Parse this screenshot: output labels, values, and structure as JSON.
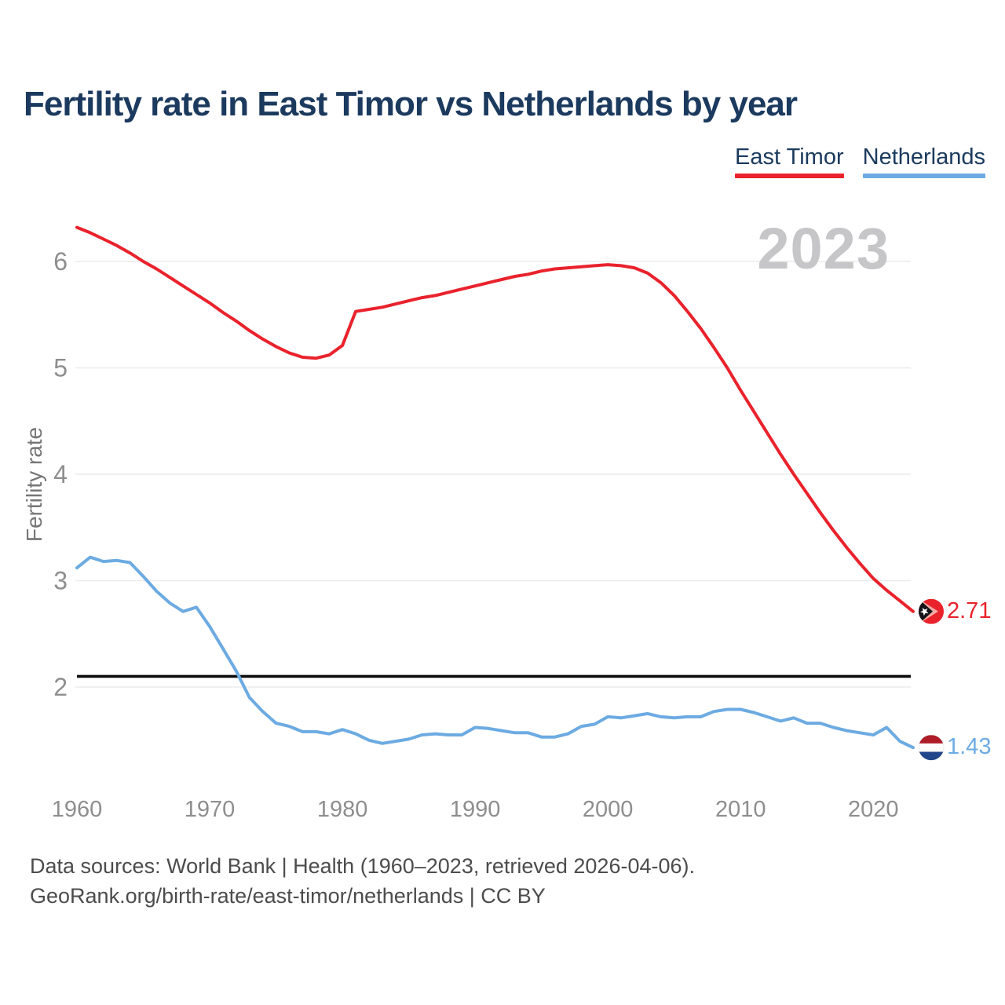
{
  "header": {
    "title": "Fertility rate in East Timor vs Netherlands by year"
  },
  "legend": {
    "east_timor": {
      "label": "East Timor",
      "color": "#e9222c"
    },
    "netherlands": {
      "label": "Netherlands",
      "color": "#6cabe2"
    }
  },
  "watermark": "2023",
  "y_axis": {
    "title": "Fertility rate",
    "ticks": [
      6,
      5,
      4,
      3,
      2
    ]
  },
  "x_axis": {
    "ticks": [
      1960,
      1970,
      1980,
      1990,
      2000,
      2010,
      2020
    ]
  },
  "reference_line": {
    "value": 2.1,
    "color": "#0c0c0c"
  },
  "chart_data": {
    "type": "line",
    "title": "Fertility rate in East Timor vs Netherlands by year",
    "xlabel": "",
    "ylabel": "Fertility rate",
    "xlim": [
      1960,
      2023
    ],
    "ylim": [
      1.3,
      6.5
    ],
    "grid": "horizontal",
    "legend_position": "top-right",
    "x": [
      1960,
      1961,
      1962,
      1963,
      1964,
      1965,
      1966,
      1967,
      1968,
      1969,
      1970,
      1971,
      1972,
      1973,
      1974,
      1975,
      1976,
      1977,
      1978,
      1979,
      1980,
      1981,
      1982,
      1983,
      1984,
      1985,
      1986,
      1987,
      1988,
      1989,
      1990,
      1991,
      1992,
      1993,
      1994,
      1995,
      1996,
      1997,
      1998,
      1999,
      2000,
      2001,
      2002,
      2003,
      2004,
      2005,
      2006,
      2007,
      2008,
      2009,
      2010,
      2011,
      2012,
      2013,
      2014,
      2015,
      2016,
      2017,
      2018,
      2019,
      2020,
      2021,
      2022,
      2023
    ],
    "series": [
      {
        "name": "East Timor",
        "color": "#e9222c",
        "end_label": "2.71",
        "values": [
          6.32,
          6.27,
          6.21,
          6.15,
          6.08,
          6.0,
          5.93,
          5.85,
          5.77,
          5.69,
          5.61,
          5.52,
          5.44,
          5.35,
          5.27,
          5.2,
          5.14,
          5.1,
          5.09,
          5.12,
          5.21,
          5.53,
          5.55,
          5.57,
          5.6,
          5.63,
          5.66,
          5.68,
          5.71,
          5.74,
          5.77,
          5.8,
          5.83,
          5.86,
          5.88,
          5.91,
          5.93,
          5.94,
          5.95,
          5.96,
          5.97,
          5.96,
          5.94,
          5.89,
          5.8,
          5.68,
          5.53,
          5.37,
          5.19,
          5.0,
          4.79,
          4.59,
          4.39,
          4.19,
          4.0,
          3.82,
          3.64,
          3.47,
          3.31,
          3.16,
          3.02,
          2.91,
          2.81,
          2.71
        ]
      },
      {
        "name": "Netherlands",
        "color": "#6cabe2",
        "end_label": "1.43",
        "values": [
          3.12,
          3.22,
          3.18,
          3.19,
          3.17,
          3.04,
          2.9,
          2.79,
          2.71,
          2.75,
          2.57,
          2.36,
          2.15,
          1.9,
          1.77,
          1.66,
          1.63,
          1.58,
          1.58,
          1.56,
          1.6,
          1.56,
          1.5,
          1.47,
          1.49,
          1.51,
          1.55,
          1.56,
          1.55,
          1.55,
          1.62,
          1.61,
          1.59,
          1.57,
          1.57,
          1.53,
          1.53,
          1.56,
          1.63,
          1.65,
          1.72,
          1.71,
          1.73,
          1.75,
          1.72,
          1.71,
          1.72,
          1.72,
          1.77,
          1.79,
          1.79,
          1.76,
          1.72,
          1.68,
          1.71,
          1.66,
          1.66,
          1.62,
          1.59,
          1.57,
          1.55,
          1.62,
          1.49,
          1.43
        ]
      }
    ]
  },
  "footer": {
    "line1": "Data sources: World Bank | Health (1960–2023, retrieved 2026-04-06).",
    "line2": "GeoRank.org/birth-rate/east-timor/netherlands | CC BY"
  }
}
